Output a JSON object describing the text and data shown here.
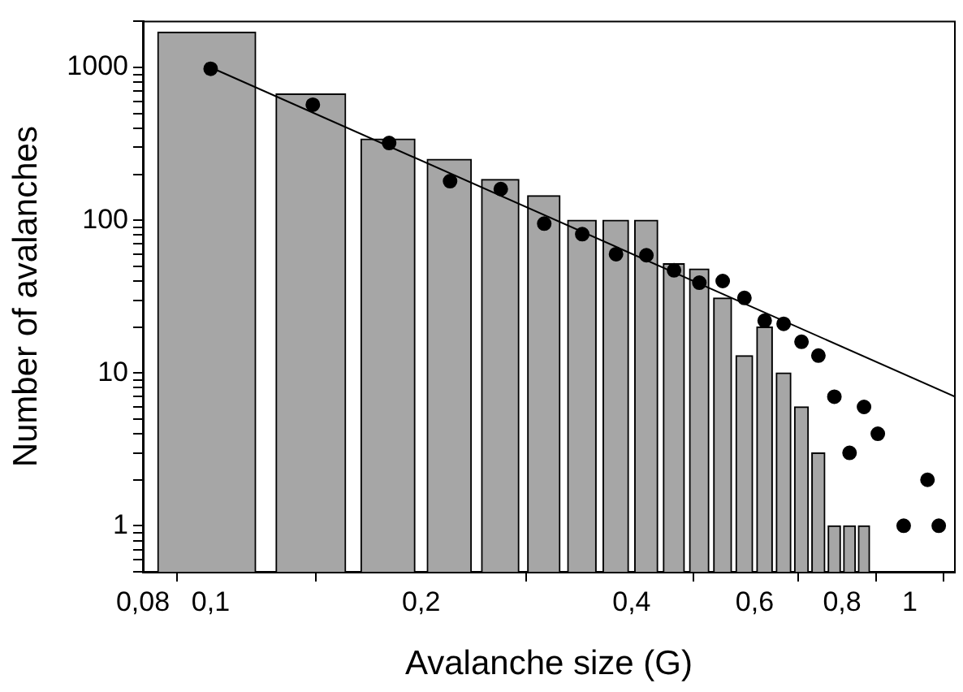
{
  "chart_data": {
    "type": "bar",
    "xlabel": "Avalanche size (G)",
    "ylabel": "Number of avalanches",
    "log": "xy",
    "xlim": [
      0.08,
      1.16
    ],
    "ylim": [
      0.5,
      2000
    ],
    "xticks": [
      {
        "value": 0.08,
        "label": "0,08"
      },
      {
        "value": 0.1,
        "label": "0,1"
      },
      {
        "value": 0.2,
        "label": "0,2"
      },
      {
        "value": 0.4,
        "label": "0,4"
      },
      {
        "value": 0.6,
        "label": "0,6"
      },
      {
        "value": 0.8,
        "label": "0,8"
      },
      1
    ],
    "yticks": [
      {
        "value": 0.5,
        "label": null
      },
      {
        "value": 0.6,
        "label": null
      },
      {
        "value": 0.7,
        "label": null
      },
      {
        "value": 0.8,
        "label": null
      },
      {
        "value": 0.9,
        "label": null
      },
      1,
      {
        "value": 2,
        "label": null
      },
      {
        "value": 3,
        "label": null
      },
      {
        "value": 4,
        "label": null
      },
      {
        "value": 5,
        "label": null
      },
      {
        "value": 6,
        "label": null
      },
      {
        "value": 7,
        "label": null
      },
      {
        "value": 8,
        "label": null
      },
      {
        "value": 9,
        "label": null
      },
      10,
      {
        "value": 20,
        "label": null
      },
      {
        "value": 30,
        "label": null
      },
      {
        "value": 40,
        "label": null
      },
      {
        "value": 50,
        "label": null
      },
      {
        "value": 60,
        "label": null
      },
      {
        "value": 70,
        "label": null
      },
      {
        "value": 80,
        "label": null
      },
      {
        "value": 90,
        "label": null
      },
      100,
      {
        "value": 200,
        "label": null
      },
      {
        "value": 300,
        "label": null
      },
      {
        "value": 400,
        "label": null
      },
      {
        "value": 500,
        "label": null
      },
      {
        "value": 600,
        "label": null
      },
      {
        "value": 700,
        "label": null
      },
      {
        "value": 800,
        "label": null
      },
      {
        "value": 900,
        "label": null
      },
      1000,
      {
        "value": 2000,
        "label": null
      }
    ],
    "color": "#a6a6a6",
    "x": [
      0.1,
      0.14,
      0.18,
      0.22,
      0.26,
      0.3,
      0.34,
      0.38,
      0.42,
      0.46,
      0.5,
      0.54,
      0.58,
      0.62,
      0.66,
      0.7,
      0.74,
      0.78,
      0.82,
      0.86
    ],
    "values": [
      1700,
      670,
      340,
      250,
      185,
      145,
      100,
      100,
      100,
      52,
      48,
      31,
      13,
      20,
      10,
      6,
      3,
      1,
      1,
      1
    ],
    "series": [
      {
        "type": "scatter",
        "color": "#000000",
        "marker": "circle",
        "x": [
          0.1,
          0.14,
          0.18,
          0.22,
          0.26,
          0.3,
          0.34,
          0.38,
          0.42,
          0.46,
          0.5,
          0.54,
          0.58,
          0.62,
          0.66,
          0.7,
          0.74,
          0.78,
          0.82,
          0.86,
          0.9,
          0.98,
          1.06,
          1.1
        ],
        "values": [
          980,
          570,
          320,
          180,
          160,
          95,
          81,
          60,
          59,
          47,
          39,
          40,
          31,
          22,
          21,
          16,
          13,
          7,
          3,
          6,
          4,
          1,
          2,
          1
        ]
      },
      {
        "type": "line",
        "color": "#000000",
        "line_style": "solid",
        "marker": "none",
        "x": [
          0.1,
          1.16
        ],
        "values": [
          1000,
          7
        ]
      }
    ]
  }
}
